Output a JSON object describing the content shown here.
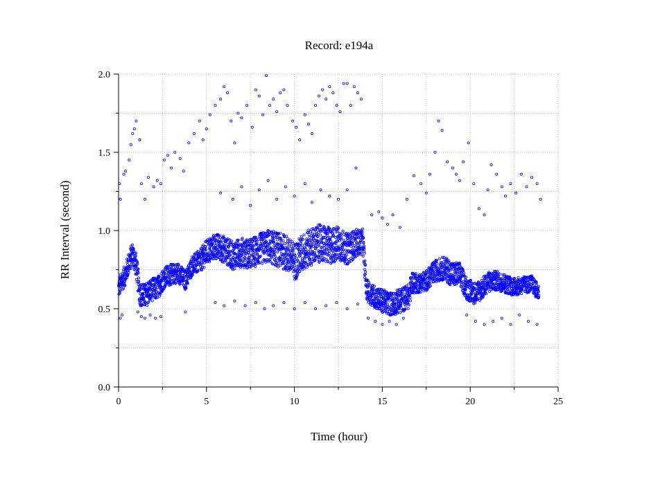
{
  "chart_data": {
    "type": "scatter",
    "title": "Record:  e194a",
    "xlabel": "Time (hour)",
    "ylabel": "RR Interval (second)",
    "xlim": [
      0,
      25
    ],
    "ylim": [
      0,
      2.0
    ],
    "x_ticks": [
      0,
      5,
      10,
      15,
      20,
      25
    ],
    "x_tick_labels": [
      "0",
      "5",
      "10",
      "15",
      "20",
      "25"
    ],
    "x_minor_ticks": [
      2.5,
      7.5,
      12.5,
      17.5,
      22.5
    ],
    "y_ticks": [
      0,
      0.5,
      1.0,
      1.5,
      2.0
    ],
    "y_tick_labels": [
      "0.0",
      "0.5",
      "1.0",
      "1.5",
      "2.0"
    ],
    "y_minor_ticks": [
      0.25,
      0.75,
      1.25,
      1.75
    ],
    "grid": true,
    "marker": "small open circle",
    "series_color": "#0000ff",
    "main_band_points": [
      [
        0.0,
        0.63
      ],
      [
        0.2,
        0.68
      ],
      [
        0.4,
        0.72
      ],
      [
        0.6,
        0.8
      ],
      [
        0.8,
        0.85
      ],
      [
        1.0,
        0.78
      ],
      [
        1.2,
        0.6
      ],
      [
        1.5,
        0.58
      ],
      [
        1.8,
        0.62
      ],
      [
        2.2,
        0.63
      ],
      [
        2.6,
        0.7
      ],
      [
        3.0,
        0.72
      ],
      [
        3.4,
        0.73
      ],
      [
        3.8,
        0.68
      ],
      [
        4.2,
        0.78
      ],
      [
        4.6,
        0.8
      ],
      [
        5.0,
        0.86
      ],
      [
        5.5,
        0.9
      ],
      [
        6.0,
        0.88
      ],
      [
        6.5,
        0.84
      ],
      [
        7.0,
        0.86
      ],
      [
        7.5,
        0.85
      ],
      [
        8.0,
        0.88
      ],
      [
        8.5,
        0.9
      ],
      [
        9.0,
        0.88
      ],
      [
        9.5,
        0.86
      ],
      [
        10.0,
        0.8
      ],
      [
        10.5,
        0.86
      ],
      [
        11.0,
        0.9
      ],
      [
        11.5,
        0.92
      ],
      [
        12.0,
        0.9
      ],
      [
        12.5,
        0.92
      ],
      [
        13.0,
        0.88
      ],
      [
        13.5,
        0.92
      ],
      [
        13.9,
        0.93
      ],
      [
        14.1,
        0.62
      ],
      [
        14.5,
        0.58
      ],
      [
        15.0,
        0.55
      ],
      [
        15.5,
        0.53
      ],
      [
        16.0,
        0.55
      ],
      [
        16.5,
        0.58
      ],
      [
        16.7,
        0.67
      ],
      [
        17.0,
        0.66
      ],
      [
        17.5,
        0.68
      ],
      [
        18.0,
        0.74
      ],
      [
        18.5,
        0.76
      ],
      [
        19.0,
        0.72
      ],
      [
        19.4,
        0.72
      ],
      [
        19.8,
        0.63
      ],
      [
        20.2,
        0.6
      ],
      [
        20.6,
        0.62
      ],
      [
        21.0,
        0.67
      ],
      [
        21.5,
        0.68
      ],
      [
        22.0,
        0.66
      ],
      [
        22.5,
        0.64
      ],
      [
        23.0,
        0.65
      ],
      [
        23.5,
        0.66
      ],
      [
        23.9,
        0.6
      ]
    ],
    "main_band_spread": [
      [
        0.0,
        0.06
      ],
      [
        1.0,
        0.08
      ],
      [
        4.0,
        0.06
      ],
      [
        5.0,
        0.08
      ],
      [
        8.0,
        0.1
      ],
      [
        10.0,
        0.12
      ],
      [
        12.0,
        0.12
      ],
      [
        13.9,
        0.08
      ],
      [
        14.1,
        0.07
      ],
      [
        16.5,
        0.08
      ],
      [
        17.0,
        0.06
      ],
      [
        19.0,
        0.08
      ],
      [
        20.0,
        0.07
      ],
      [
        24.0,
        0.05
      ]
    ],
    "upper_points": [
      [
        0.05,
        1.3
      ],
      [
        0.1,
        1.2
      ],
      [
        0.3,
        1.36
      ],
      [
        0.4,
        1.38
      ],
      [
        0.6,
        1.45
      ],
      [
        0.7,
        1.55
      ],
      [
        0.8,
        1.62
      ],
      [
        0.9,
        1.65
      ],
      [
        1.0,
        1.7
      ],
      [
        1.2,
        1.58
      ],
      [
        1.3,
        1.3
      ],
      [
        1.5,
        1.2
      ],
      [
        1.7,
        1.34
      ],
      [
        2.0,
        1.28
      ],
      [
        2.2,
        1.32
      ],
      [
        2.4,
        1.3
      ],
      [
        2.6,
        1.45
      ],
      [
        2.8,
        1.48
      ],
      [
        3.0,
        1.4
      ],
      [
        3.2,
        1.5
      ],
      [
        3.5,
        1.46
      ],
      [
        3.7,
        1.38
      ],
      [
        4.0,
        1.56
      ],
      [
        4.3,
        1.62
      ],
      [
        4.6,
        1.7
      ],
      [
        4.8,
        1.58
      ],
      [
        5.0,
        1.65
      ],
      [
        5.2,
        1.74
      ],
      [
        5.5,
        1.8
      ],
      [
        5.8,
        1.84
      ],
      [
        6.0,
        1.92
      ],
      [
        6.2,
        1.88
      ],
      [
        6.4,
        1.7
      ],
      [
        6.6,
        1.56
      ],
      [
        6.8,
        1.75
      ],
      [
        7.0,
        1.72
      ],
      [
        7.3,
        1.8
      ],
      [
        7.6,
        1.66
      ],
      [
        7.8,
        1.9
      ],
      [
        8.0,
        1.86
      ],
      [
        8.2,
        1.74
      ],
      [
        8.4,
        1.99
      ],
      [
        8.6,
        1.8
      ],
      [
        8.8,
        1.84
      ],
      [
        9.0,
        1.76
      ],
      [
        9.2,
        1.88
      ],
      [
        9.4,
        1.9
      ],
      [
        9.6,
        1.8
      ],
      [
        9.9,
        1.7
      ],
      [
        10.1,
        1.66
      ],
      [
        10.3,
        1.58
      ],
      [
        10.6,
        1.74
      ],
      [
        10.8,
        1.68
      ],
      [
        11.0,
        1.62
      ],
      [
        11.2,
        1.8
      ],
      [
        11.4,
        1.86
      ],
      [
        11.6,
        1.9
      ],
      [
        11.8,
        1.84
      ],
      [
        12.0,
        1.92
      ],
      [
        12.2,
        1.88
      ],
      [
        12.4,
        1.8
      ],
      [
        12.6,
        1.76
      ],
      [
        12.8,
        1.94
      ],
      [
        13.0,
        1.94
      ],
      [
        13.2,
        1.8
      ],
      [
        13.4,
        1.92
      ],
      [
        13.6,
        1.88
      ],
      [
        13.8,
        1.84
      ],
      [
        5.8,
        1.24
      ],
      [
        6.5,
        1.2
      ],
      [
        7.0,
        1.28
      ],
      [
        7.5,
        1.16
      ],
      [
        8.0,
        1.26
      ],
      [
        8.5,
        1.32
      ],
      [
        9.0,
        1.2
      ],
      [
        9.5,
        1.28
      ],
      [
        10.0,
        1.22
      ],
      [
        10.6,
        1.3
      ],
      [
        11.0,
        1.18
      ],
      [
        11.5,
        1.26
      ],
      [
        12.0,
        1.22
      ],
      [
        12.5,
        1.2
      ],
      [
        13.0,
        1.26
      ],
      [
        13.5,
        1.4
      ],
      [
        14.4,
        1.1
      ],
      [
        14.8,
        1.12
      ],
      [
        15.0,
        1.08
      ],
      [
        15.3,
        1.04
      ],
      [
        15.6,
        1.1
      ],
      [
        16.0,
        1.02
      ],
      [
        16.4,
        1.2
      ],
      [
        16.8,
        1.35
      ],
      [
        17.2,
        1.3
      ],
      [
        17.5,
        1.24
      ],
      [
        17.7,
        1.36
      ],
      [
        18.0,
        1.5
      ],
      [
        18.2,
        1.7
      ],
      [
        18.4,
        1.64
      ],
      [
        18.7,
        1.44
      ],
      [
        19.0,
        1.4
      ],
      [
        19.2,
        1.36
      ],
      [
        19.4,
        1.32
      ],
      [
        19.6,
        1.44
      ],
      [
        19.9,
        1.56
      ],
      [
        20.2,
        1.3
      ],
      [
        20.5,
        1.14
      ],
      [
        20.8,
        1.1
      ],
      [
        21.0,
        1.26
      ],
      [
        21.2,
        1.42
      ],
      [
        21.5,
        1.36
      ],
      [
        21.8,
        1.28
      ],
      [
        22.0,
        1.22
      ],
      [
        22.3,
        1.3
      ],
      [
        22.6,
        1.24
      ],
      [
        22.9,
        1.36
      ],
      [
        23.2,
        1.28
      ],
      [
        23.5,
        1.34
      ],
      [
        23.8,
        1.3
      ],
      [
        24.0,
        1.2
      ]
    ],
    "lower_points": [
      [
        0.1,
        0.44
      ],
      [
        0.2,
        0.46
      ],
      [
        1.1,
        0.48
      ],
      [
        1.3,
        0.45
      ],
      [
        1.5,
        0.44
      ],
      [
        1.8,
        0.46
      ],
      [
        2.1,
        0.44
      ],
      [
        2.4,
        0.45
      ],
      [
        3.8,
        0.48
      ],
      [
        5.5,
        0.54
      ],
      [
        6.0,
        0.52
      ],
      [
        6.6,
        0.55
      ],
      [
        7.2,
        0.52
      ],
      [
        7.8,
        0.54
      ],
      [
        8.3,
        0.5
      ],
      [
        8.8,
        0.52
      ],
      [
        9.4,
        0.54
      ],
      [
        10.0,
        0.5
      ],
      [
        10.6,
        0.54
      ],
      [
        11.2,
        0.5
      ],
      [
        11.8,
        0.52
      ],
      [
        12.4,
        0.54
      ],
      [
        13.0,
        0.5
      ],
      [
        13.6,
        0.53
      ],
      [
        14.2,
        0.44
      ],
      [
        14.6,
        0.42
      ],
      [
        15.0,
        0.4
      ],
      [
        15.4,
        0.42
      ],
      [
        15.8,
        0.4
      ],
      [
        16.2,
        0.44
      ],
      [
        19.8,
        0.46
      ],
      [
        20.3,
        0.42
      ],
      [
        20.8,
        0.4
      ],
      [
        21.3,
        0.42
      ],
      [
        21.8,
        0.44
      ],
      [
        22.3,
        0.4
      ],
      [
        22.8,
        0.46
      ],
      [
        23.3,
        0.42
      ],
      [
        23.8,
        0.4
      ]
    ]
  }
}
